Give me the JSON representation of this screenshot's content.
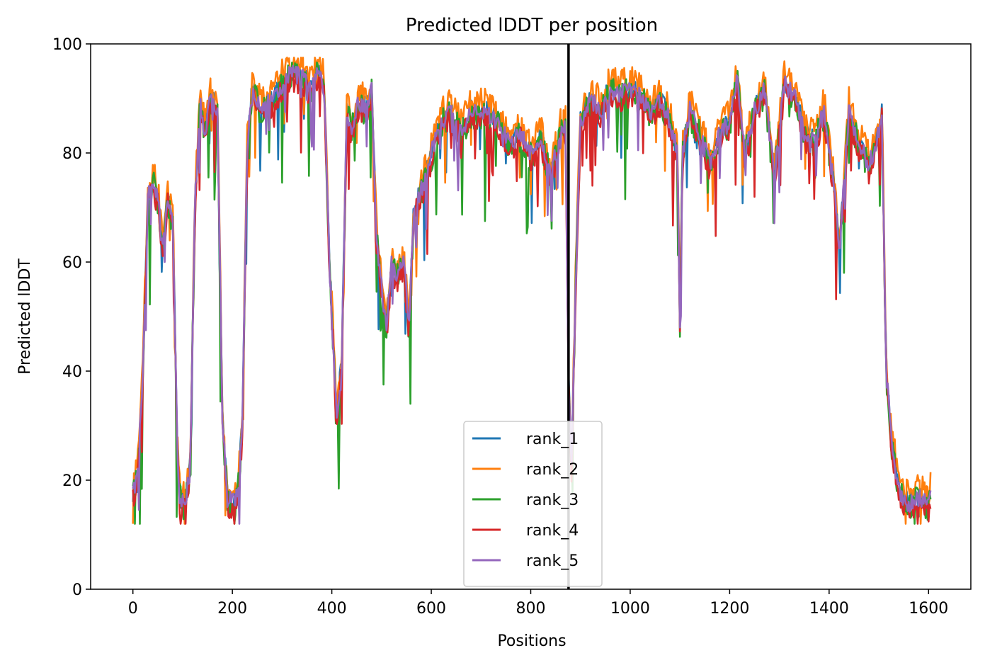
{
  "chart_data": {
    "type": "line",
    "title": "Predicted lDDT per position",
    "xlabel": "Positions",
    "ylabel": "Predicted lDDT",
    "xlim": [
      -85,
      1685
    ],
    "ylim": [
      0,
      100
    ],
    "xticks": [
      0,
      200,
      400,
      600,
      800,
      1000,
      1200,
      1400,
      1600
    ],
    "yticks": [
      0,
      20,
      40,
      60,
      80,
      100
    ],
    "grid": false,
    "legend_position": "lower-center",
    "vline": {
      "x": 876,
      "color": "#000000"
    },
    "base_profile": {
      "x": [
        0,
        10,
        20,
        30,
        40,
        50,
        60,
        70,
        80,
        90,
        95,
        105,
        115,
        125,
        135,
        145,
        155,
        170,
        180,
        190,
        200,
        210,
        220,
        230,
        240,
        260,
        280,
        300,
        320,
        340,
        360,
        375,
        385,
        395,
        410,
        420,
        430,
        440,
        455,
        470,
        480,
        490,
        500,
        510,
        520,
        530,
        545,
        555,
        565,
        575,
        590,
        600,
        620,
        640,
        660,
        680,
        700,
        720,
        740,
        760,
        780,
        800,
        820,
        840,
        860,
        870,
        876,
        882,
        890,
        900,
        920,
        940,
        960,
        980,
        1000,
        1020,
        1040,
        1060,
        1080,
        1095,
        1100,
        1105,
        1120,
        1140,
        1160,
        1180,
        1200,
        1215,
        1230,
        1250,
        1270,
        1290,
        1310,
        1330,
        1350,
        1370,
        1390,
        1410,
        1420,
        1440,
        1460,
        1480,
        1500,
        1506,
        1515,
        1525,
        1540,
        1560,
        1580,
        1600,
        1605
      ],
      "y": [
        18,
        22,
        40,
        72,
        75,
        72,
        62,
        72,
        68,
        24,
        17,
        16,
        22,
        72,
        89,
        84,
        90,
        88,
        32,
        17,
        16,
        17,
        30,
        82,
        92,
        88,
        90,
        93,
        95,
        94,
        92,
        96,
        92,
        60,
        32,
        42,
        88,
        85,
        90,
        88,
        92,
        65,
        56,
        48,
        60,
        58,
        60,
        48,
        70,
        72,
        76,
        80,
        86,
        88,
        84,
        88,
        88,
        87,
        85,
        82,
        84,
        80,
        83,
        76,
        84,
        85,
        38,
        22,
        55,
        86,
        90,
        88,
        92,
        91,
        92,
        91,
        88,
        90,
        86,
        80,
        48,
        80,
        88,
        84,
        78,
        84,
        86,
        94,
        80,
        88,
        92,
        76,
        93,
        91,
        84,
        82,
        88,
        74,
        62,
        88,
        82,
        78,
        84,
        88,
        40,
        28,
        18,
        16,
        17,
        16,
        18
      ]
    },
    "series": [
      {
        "name": "rank_1",
        "color": "#1f77b4",
        "offset": 0.0,
        "amp": 1.0
      },
      {
        "name": "rank_2",
        "color": "#ff7f0e",
        "offset": 1.8,
        "amp": 1.2
      },
      {
        "name": "rank_3",
        "color": "#2ca02c",
        "offset": -0.8,
        "amp": 1.4
      },
      {
        "name": "rank_4",
        "color": "#d62728",
        "offset": -1.5,
        "amp": 1.1
      },
      {
        "name": "rank_5",
        "color": "#9467bd",
        "offset": -0.3,
        "amp": 0.9
      }
    ]
  }
}
